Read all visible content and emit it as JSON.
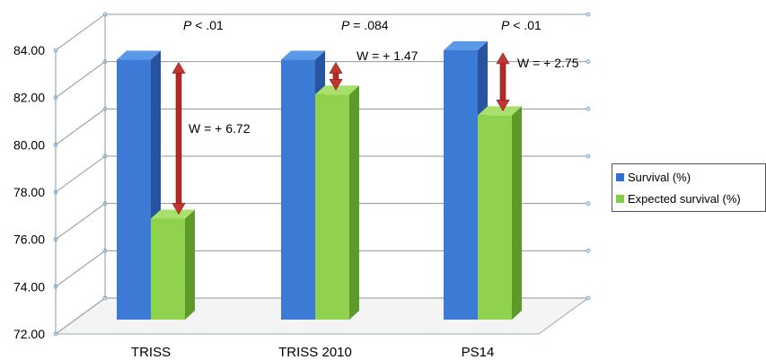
{
  "chart_data": {
    "type": "bar",
    "categories": [
      "TRISS",
      "TRISS 2010",
      "PS14"
    ],
    "series": [
      {
        "name": "Survival (%)",
        "values": [
          83.6,
          83.6,
          84.0
        ],
        "color": "#3c78d0"
      },
      {
        "name": "Expected survival (%)",
        "values": [
          76.88,
          82.13,
          81.25
        ],
        "color": "#8ccf4a"
      }
    ],
    "ylim": [
      72,
      84
    ],
    "yticks": [
      "72.00",
      "74.00",
      "76.00",
      "78.00",
      "80.00",
      "82.00",
      "84.00"
    ],
    "grid": true,
    "legend_position": "right",
    "annotations": [
      {
        "p_prefix": "P",
        "p_text": " < .01",
        "w_text": "W = + 6.72"
      },
      {
        "p_prefix": "P",
        "p_text": " = .084",
        "w_text": "W = + 1.47"
      },
      {
        "p_prefix": "P",
        "p_text": " < .01",
        "w_text": "W = + 2.75"
      }
    ]
  },
  "legend": {
    "items": [
      {
        "label": "Survival (%)",
        "color": "#2f6fd6"
      },
      {
        "label": "Expected survival (%)",
        "color": "#7ed13c"
      }
    ]
  }
}
